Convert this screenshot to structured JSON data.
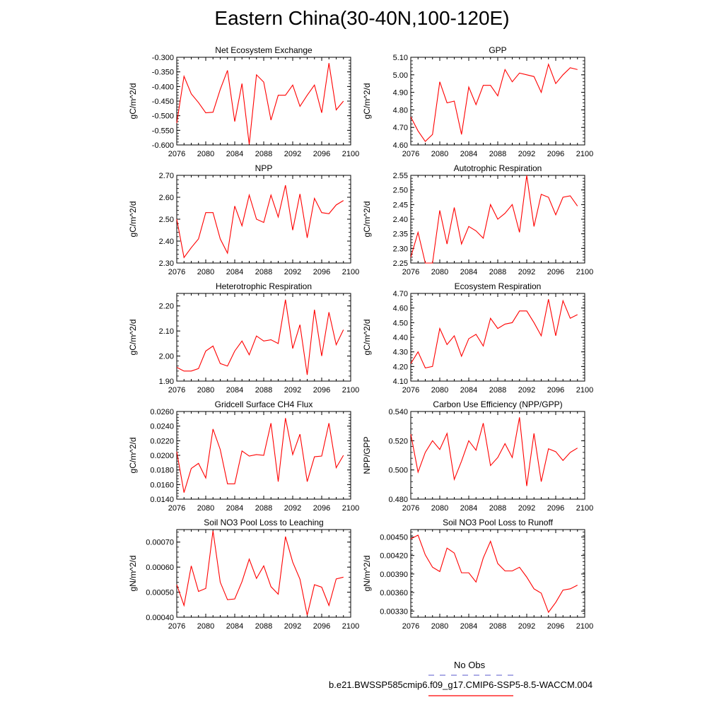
{
  "title": "Eastern China(30-40N,100-120E)",
  "colors": {
    "series": "#ff0000",
    "obs": "#7b7bd8",
    "axis": "#000000"
  },
  "legend": {
    "obs_label": "No Obs",
    "model_label": "b.e21.BWSSP585cmip6.f09_g17.CMIP6-SSP5-8.5-WACCM.004"
  },
  "chart_data": [
    {
      "type": "line",
      "title": "Net Ecosystem Exchange",
      "ylabel": "gC/m^2/d",
      "xlim": [
        2076,
        2100
      ],
      "ylim": [
        -0.6,
        -0.3
      ],
      "yticks": [
        "-0.300",
        "-0.350",
        "-0.400",
        "-0.450",
        "-0.500",
        "-0.550",
        "-0.600"
      ],
      "xticks": [
        "2076",
        "2080",
        "2084",
        "2088",
        "2092",
        "2096",
        "2100"
      ],
      "x": [
        2076,
        2077,
        2078,
        2079,
        2080,
        2081,
        2082,
        2083,
        2084,
        2085,
        2086,
        2087,
        2088,
        2089,
        2090,
        2091,
        2092,
        2093,
        2094,
        2095,
        2096,
        2097,
        2098,
        2099
      ],
      "values": [
        -0.525,
        -0.365,
        -0.425,
        -0.455,
        -0.49,
        -0.488,
        -0.41,
        -0.345,
        -0.52,
        -0.39,
        -0.598,
        -0.36,
        -0.385,
        -0.515,
        -0.43,
        -0.43,
        -0.395,
        -0.468,
        -0.43,
        -0.395,
        -0.49,
        -0.32,
        -0.48,
        -0.45
      ]
    },
    {
      "type": "line",
      "title": "GPP",
      "ylabel": "gC/m^2/d",
      "xlim": [
        2076,
        2100
      ],
      "ylim": [
        4.6,
        5.1
      ],
      "yticks": [
        "5.10",
        "5.00",
        "4.90",
        "4.80",
        "4.70",
        "4.60"
      ],
      "xticks": [
        "2076",
        "2080",
        "2084",
        "2088",
        "2092",
        "2096",
        "2100"
      ],
      "x": [
        2076,
        2077,
        2078,
        2079,
        2080,
        2081,
        2082,
        2083,
        2084,
        2085,
        2086,
        2087,
        2088,
        2089,
        2090,
        2091,
        2092,
        2093,
        2094,
        2095,
        2096,
        2097,
        2098,
        2099
      ],
      "values": [
        4.76,
        4.68,
        4.62,
        4.66,
        4.96,
        4.84,
        4.85,
        4.66,
        4.93,
        4.83,
        4.94,
        4.94,
        4.88,
        5.03,
        4.96,
        5.01,
        5.0,
        4.99,
        4.9,
        5.06,
        4.95,
        5.0,
        5.04,
        5.03
      ]
    },
    {
      "type": "line",
      "title": "NPP",
      "ylabel": "gC/m^2/d",
      "xlim": [
        2076,
        2100
      ],
      "ylim": [
        2.3,
        2.7
      ],
      "yticks": [
        "2.70",
        "2.60",
        "2.50",
        "2.40",
        "2.30"
      ],
      "xticks": [
        "2076",
        "2080",
        "2084",
        "2088",
        "2092",
        "2096",
        "2100"
      ],
      "x": [
        2076,
        2077,
        2078,
        2079,
        2080,
        2081,
        2082,
        2083,
        2084,
        2085,
        2086,
        2087,
        2088,
        2089,
        2090,
        2091,
        2092,
        2093,
        2094,
        2095,
        2096,
        2097,
        2098,
        2099
      ],
      "values": [
        2.5,
        2.325,
        2.37,
        2.41,
        2.53,
        2.53,
        2.41,
        2.345,
        2.56,
        2.47,
        2.61,
        2.5,
        2.485,
        2.61,
        2.51,
        2.655,
        2.45,
        2.615,
        2.415,
        2.595,
        2.53,
        2.525,
        2.565,
        2.585
      ]
    },
    {
      "type": "line",
      "title": "Autotrophic Respiration",
      "ylabel": "gC/m^2/d",
      "xlim": [
        2076,
        2100
      ],
      "ylim": [
        2.25,
        2.55
      ],
      "yticks": [
        "2.55",
        "2.50",
        "2.45",
        "2.40",
        "2.35",
        "2.30",
        "2.25"
      ],
      "xticks": [
        "2076",
        "2080",
        "2084",
        "2088",
        "2092",
        "2096",
        "2100"
      ],
      "x": [
        2076,
        2077,
        2078,
        2079,
        2080,
        2081,
        2082,
        2083,
        2084,
        2085,
        2086,
        2087,
        2088,
        2089,
        2090,
        2091,
        2092,
        2093,
        2094,
        2095,
        2096,
        2097,
        2098,
        2099
      ],
      "values": [
        2.27,
        2.355,
        2.25,
        2.25,
        2.43,
        2.315,
        2.44,
        2.315,
        2.375,
        2.36,
        2.335,
        2.45,
        2.4,
        2.42,
        2.45,
        2.355,
        2.55,
        2.375,
        2.485,
        2.475,
        2.415,
        2.475,
        2.48,
        2.445
      ]
    },
    {
      "type": "line",
      "title": "Heterotrophic Respiration",
      "ylabel": "gC/m^2/d",
      "xlim": [
        2076,
        2100
      ],
      "ylim": [
        1.9,
        2.25
      ],
      "yticks": [
        "2.20",
        "2.10",
        "2.00",
        "1.90"
      ],
      "xticks": [
        "2076",
        "2080",
        "2084",
        "2088",
        "2092",
        "2096",
        "2100"
      ],
      "x": [
        2076,
        2077,
        2078,
        2079,
        2080,
        2081,
        2082,
        2083,
        2084,
        2085,
        2086,
        2087,
        2088,
        2089,
        2090,
        2091,
        2092,
        2093,
        2094,
        2095,
        2096,
        2097,
        2098,
        2099
      ],
      "values": [
        1.955,
        1.94,
        1.94,
        1.95,
        2.02,
        2.04,
        1.97,
        1.96,
        2.02,
        2.06,
        2.005,
        2.08,
        2.06,
        2.065,
        2.05,
        2.225,
        2.03,
        2.125,
        1.925,
        2.185,
        2.0,
        2.175,
        2.045,
        2.105
      ]
    },
    {
      "type": "line",
      "title": "Ecosystem Respiration",
      "ylabel": "gC/m^2/d",
      "xlim": [
        2076,
        2100
      ],
      "ylim": [
        4.1,
        4.7
      ],
      "yticks": [
        "4.70",
        "4.60",
        "4.50",
        "4.40",
        "4.30",
        "4.20",
        "4.10"
      ],
      "xticks": [
        "2076",
        "2080",
        "2084",
        "2088",
        "2092",
        "2096",
        "2100"
      ],
      "x": [
        2076,
        2077,
        2078,
        2079,
        2080,
        2081,
        2082,
        2083,
        2084,
        2085,
        2086,
        2087,
        2088,
        2089,
        2090,
        2091,
        2092,
        2093,
        2094,
        2095,
        2096,
        2097,
        2098,
        2099
      ],
      "values": [
        4.22,
        4.3,
        4.19,
        4.2,
        4.46,
        4.35,
        4.41,
        4.27,
        4.39,
        4.42,
        4.34,
        4.53,
        4.46,
        4.49,
        4.5,
        4.58,
        4.58,
        4.5,
        4.41,
        4.66,
        4.41,
        4.65,
        4.53,
        4.555
      ]
    },
    {
      "type": "line",
      "title": "Gridcell Surface CH4 Flux",
      "ylabel": "gC/m^2/d",
      "xlim": [
        2076,
        2100
      ],
      "ylim": [
        0.014,
        0.026
      ],
      "yticks": [
        "0.0260",
        "0.0240",
        "0.0220",
        "0.0200",
        "0.0180",
        "0.0160",
        "0.0140"
      ],
      "xticks": [
        "2076",
        "2080",
        "2084",
        "2088",
        "2092",
        "2096",
        "2100"
      ],
      "x": [
        2076,
        2077,
        2078,
        2079,
        2080,
        2081,
        2082,
        2083,
        2084,
        2085,
        2086,
        2087,
        2088,
        2089,
        2090,
        2091,
        2092,
        2093,
        2094,
        2095,
        2096,
        2097,
        2098,
        2099
      ],
      "values": [
        0.0205,
        0.0149,
        0.0182,
        0.0189,
        0.0169,
        0.0236,
        0.0208,
        0.0161,
        0.0161,
        0.0206,
        0.0199,
        0.0201,
        0.02,
        0.0244,
        0.0164,
        0.0251,
        0.0201,
        0.0229,
        0.0164,
        0.0198,
        0.0199,
        0.0244,
        0.0183,
        0.02
      ]
    },
    {
      "type": "line",
      "title": "Carbon Use Efficiency (NPP/GPP)",
      "ylabel": "NPP/GPP",
      "xlim": [
        2076,
        2100
      ],
      "ylim": [
        0.48,
        0.54
      ],
      "yticks": [
        "0.540",
        "0.520",
        "0.500",
        "0.480"
      ],
      "xticks": [
        "2076",
        "2080",
        "2084",
        "2088",
        "2092",
        "2096",
        "2100"
      ],
      "x": [
        2076,
        2077,
        2078,
        2079,
        2080,
        2081,
        2082,
        2083,
        2084,
        2085,
        2086,
        2087,
        2088,
        2089,
        2090,
        2091,
        2092,
        2093,
        2094,
        2095,
        2096,
        2097,
        2098,
        2099
      ],
      "values": [
        0.5245,
        0.4985,
        0.512,
        0.52,
        0.514,
        0.525,
        0.4935,
        0.506,
        0.52,
        0.5135,
        0.532,
        0.503,
        0.5085,
        0.518,
        0.5085,
        0.536,
        0.489,
        0.525,
        0.492,
        0.5145,
        0.5125,
        0.5065,
        0.512,
        0.515
      ]
    },
    {
      "type": "line",
      "title": "Soil NO3 Pool Loss to Leaching",
      "ylabel": "gN/m^2/d",
      "xlim": [
        2076,
        2100
      ],
      "ylim": [
        0.0004,
        0.00075
      ],
      "yticks": [
        "0.00070",
        "0.00060",
        "0.00050",
        "0.00040"
      ],
      "xticks": [
        "2076",
        "2080",
        "2084",
        "2088",
        "2092",
        "2096",
        "2100"
      ],
      "x": [
        2076,
        2077,
        2078,
        2079,
        2080,
        2081,
        2082,
        2083,
        2084,
        2085,
        2086,
        2087,
        2088,
        2089,
        2090,
        2091,
        2092,
        2093,
        2094,
        2095,
        2096,
        2097,
        2098,
        2099
      ],
      "values": [
        0.00053,
        0.000447,
        0.000605,
        0.000503,
        0.000515,
        0.000745,
        0.00054,
        0.00047,
        0.000473,
        0.000542,
        0.000632,
        0.000555,
        0.000605,
        0.000522,
        0.000492,
        0.000722,
        0.00062,
        0.000552,
        0.000408,
        0.00053,
        0.00052,
        0.000447,
        0.000553,
        0.00056
      ]
    },
    {
      "type": "line",
      "title": "Soil NO3 Pool Loss to Runoff",
      "ylabel": "gN/m^2/d",
      "xlim": [
        2076,
        2100
      ],
      "ylim": [
        0.0032,
        0.00462
      ],
      "yticks": [
        "0.00450",
        "0.00420",
        "0.00390",
        "0.00360",
        "0.00330"
      ],
      "xticks": [
        "2076",
        "2080",
        "2084",
        "2088",
        "2092",
        "2096",
        "2100"
      ],
      "x": [
        2076,
        2077,
        2078,
        2079,
        2080,
        2081,
        2082,
        2083,
        2084,
        2085,
        2086,
        2087,
        2088,
        2089,
        2090,
        2091,
        2092,
        2093,
        2094,
        2095,
        2096,
        2097,
        2098,
        2099
      ],
      "values": [
        0.00447,
        0.00453,
        0.00421,
        0.00401,
        0.00394,
        0.00432,
        0.00424,
        0.00392,
        0.00392,
        0.00377,
        0.00416,
        0.00443,
        0.00407,
        0.00395,
        0.00395,
        0.00401,
        0.00385,
        0.00366,
        0.00359,
        0.00328,
        0.00344,
        0.00364,
        0.00366,
        0.00372
      ]
    }
  ]
}
